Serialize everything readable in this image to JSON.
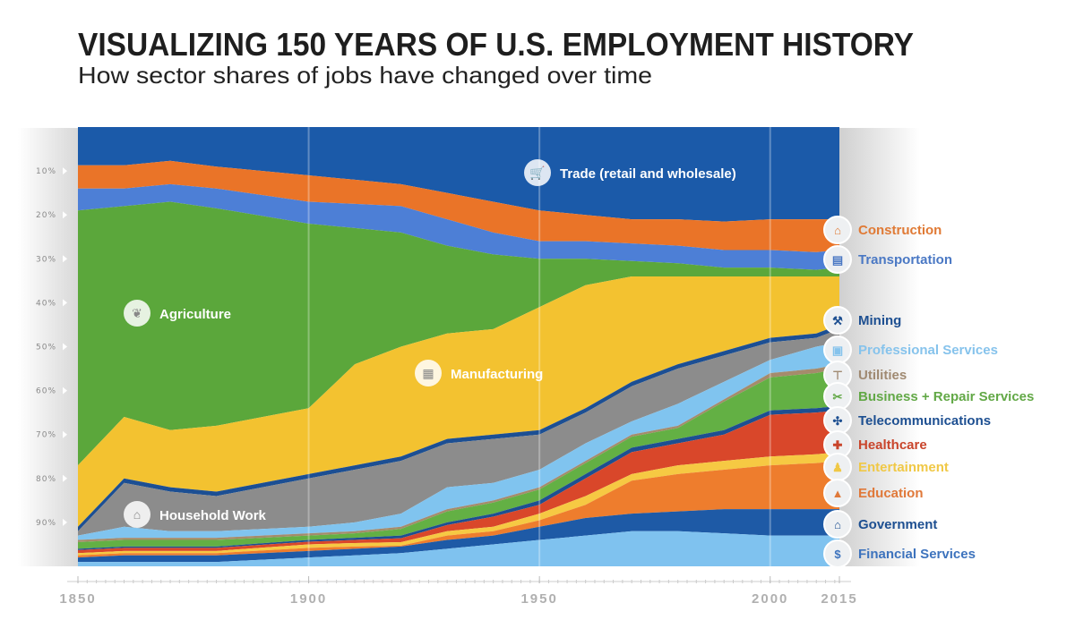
{
  "chart_data": {
    "type": "area",
    "stacked": true,
    "title": "VISUALIZING 150 YEARS OF U.S. EMPLOYMENT HISTORY",
    "subtitle": "How sector shares of jobs have changed over time",
    "xlabel": "",
    "ylabel": "",
    "xlim": [
      1850,
      2015
    ],
    "ylim": [
      0,
      100
    ],
    "y_ticks": [
      "10%",
      "20%",
      "30%",
      "40%",
      "50%",
      "60%",
      "70%",
      "80%",
      "90%"
    ],
    "x_ticks": [
      "1850",
      "1900",
      "1950",
      "2000",
      "2015"
    ],
    "x": [
      1850,
      1860,
      1870,
      1880,
      1900,
      1910,
      1920,
      1930,
      1940,
      1950,
      1960,
      1970,
      1980,
      1990,
      2000,
      2010,
      2015
    ],
    "value_note": "cumulative share of jobs (%) at the bottom edge of each sector band, stacked from top",
    "series": [
      {
        "name": "Trade (retail and wholesale)",
        "color": "#1b5aa9",
        "cumulative_pct": [
          8.7,
          8.7,
          7.7,
          9,
          11,
          12,
          13,
          15,
          17,
          19,
          20,
          21,
          21,
          21.5,
          21,
          21,
          21
        ]
      },
      {
        "name": "Construction",
        "color": "#ea7428",
        "cumulative_pct": [
          14,
          14,
          13,
          14,
          17,
          17.5,
          18,
          21,
          24,
          26,
          26,
          26.5,
          27,
          28,
          28,
          28.5,
          28
        ]
      },
      {
        "name": "Transportation",
        "color": "#4d7fd6",
        "cumulative_pct": [
          19,
          18,
          17,
          18.5,
          22,
          23,
          24,
          27,
          29,
          30,
          30,
          30.5,
          31,
          32,
          32,
          32.5,
          32
        ]
      },
      {
        "name": "Agriculture",
        "color": "#5ba73b",
        "cumulative_pct": [
          77,
          66,
          69,
          68,
          64,
          54,
          50,
          47,
          46,
          41,
          36,
          34,
          34,
          34,
          34,
          34,
          34
        ]
      },
      {
        "name": "Manufacturing",
        "color": "#f3c230",
        "cumulative_pct": [
          91,
          80,
          82,
          83,
          79,
          77,
          75,
          71,
          70,
          69,
          64,
          58,
          54,
          51,
          48,
          47,
          45
        ]
      },
      {
        "name": "Mining",
        "color": "#1c4f93",
        "cumulative_pct": [
          92,
          81,
          83,
          84,
          80,
          78,
          76,
          72,
          71,
          70,
          65,
          59,
          55,
          52,
          49,
          48,
          46
        ]
      },
      {
        "name": "Household Work",
        "color": "#8c8c8c",
        "cumulative_pct": [
          93,
          91,
          92,
          92,
          91,
          90,
          88,
          82,
          81,
          78,
          72,
          67,
          63,
          58,
          53,
          50,
          49
        ]
      },
      {
        "name": "Professional Services",
        "color": "#80c4ef",
        "cumulative_pct": [
          94,
          93.5,
          93.5,
          93.5,
          92.5,
          92,
          91,
          87,
          85,
          82,
          76,
          70,
          68,
          62,
          56,
          55,
          54
        ]
      },
      {
        "name": "Utilities",
        "color": "#a58b6c",
        "cumulative_pct": [
          94.5,
          94,
          94,
          94,
          93,
          92.5,
          91.5,
          87.5,
          85.5,
          82.5,
          76.5,
          70.5,
          68.5,
          62.5,
          57,
          56,
          55
        ]
      },
      {
        "name": "Business + Repair Services",
        "color": "#63b044",
        "cumulative_pct": [
          96,
          95.5,
          95.5,
          95.5,
          94,
          93.5,
          93,
          90,
          88,
          85,
          79,
          73,
          71,
          69,
          64.5,
          64,
          63.5
        ]
      },
      {
        "name": "Telecommunications",
        "color": "#1d4f91",
        "cumulative_pct": [
          96.3,
          95.8,
          95.8,
          95.8,
          94.4,
          94,
          93.6,
          90.6,
          88.7,
          86,
          80,
          74,
          72,
          70,
          65.5,
          65,
          64.5
        ]
      },
      {
        "name": "Healthcare",
        "color": "#d9472a",
        "cumulative_pct": [
          97,
          96.5,
          96.5,
          96.5,
          95,
          94.7,
          94.5,
          92,
          91,
          88,
          84,
          79,
          77,
          76,
          75,
          74.5,
          74
        ]
      },
      {
        "name": "Entertainment",
        "color": "#f6c943",
        "cumulative_pct": [
          97.5,
          97,
          97,
          97,
          95.8,
          95.5,
          95.3,
          93,
          92,
          89.5,
          86,
          80.5,
          79,
          78,
          77,
          76.5,
          76
        ]
      },
      {
        "name": "Education",
        "color": "#ee7d2d",
        "cumulative_pct": [
          98,
          97.5,
          97.5,
          97.5,
          96.5,
          96,
          95.5,
          94,
          93,
          91,
          89,
          88,
          87.5,
          87,
          87,
          87,
          87
        ]
      },
      {
        "name": "Government",
        "color": "#1e5aa6",
        "cumulative_pct": [
          99,
          99,
          99,
          99,
          98,
          97.5,
          97,
          96,
          95,
          94,
          93,
          92,
          92,
          92.5,
          93,
          93,
          93
        ]
      },
      {
        "name": "Financial Services",
        "color": "#7fc2ef",
        "cumulative_pct": [
          100,
          100,
          100,
          100,
          100,
          100,
          100,
          100,
          100,
          100,
          100,
          100,
          100,
          100,
          100,
          100,
          100
        ]
      }
    ],
    "inline_labels": [
      {
        "text": "Trade (retail and wholesale)",
        "icon": "shopping-cart-icon"
      },
      {
        "text": "Agriculture",
        "icon": "wheat-icon"
      },
      {
        "text": "Manufacturing",
        "icon": "factory-icon"
      },
      {
        "text": "Household Work",
        "icon": "house-icon"
      }
    ],
    "legend_placement": "right",
    "legend": [
      {
        "text": "Construction",
        "color": "#e07a35",
        "icon": "construction-icon"
      },
      {
        "text": "Transportation",
        "color": "#4a78c4",
        "icon": "truck-icon"
      },
      {
        "text": "Mining",
        "color": "#1d4f91",
        "icon": "pickaxe-icon"
      },
      {
        "text": "Professional Services",
        "color": "#86c3ec",
        "icon": "briefcase-icon"
      },
      {
        "text": "Utilities",
        "color": "#a08a72",
        "icon": "faucet-icon"
      },
      {
        "text": "Business + Repair Services",
        "color": "#62a846",
        "icon": "tools-icon"
      },
      {
        "text": "Telecommunications",
        "color": "#1d4f91",
        "icon": "satellite-icon"
      },
      {
        "text": "Healthcare",
        "color": "#c9452b",
        "icon": "cross-icon"
      },
      {
        "text": "Entertainment",
        "color": "#f0c846",
        "icon": "joystick-icon"
      },
      {
        "text": "Education",
        "color": "#e0793a",
        "icon": "graduation-cap-icon"
      },
      {
        "text": "Government",
        "color": "#1d4f91",
        "icon": "bank-icon"
      },
      {
        "text": "Financial Services",
        "color": "#3d73bd",
        "icon": "money-bag-icon"
      }
    ]
  }
}
